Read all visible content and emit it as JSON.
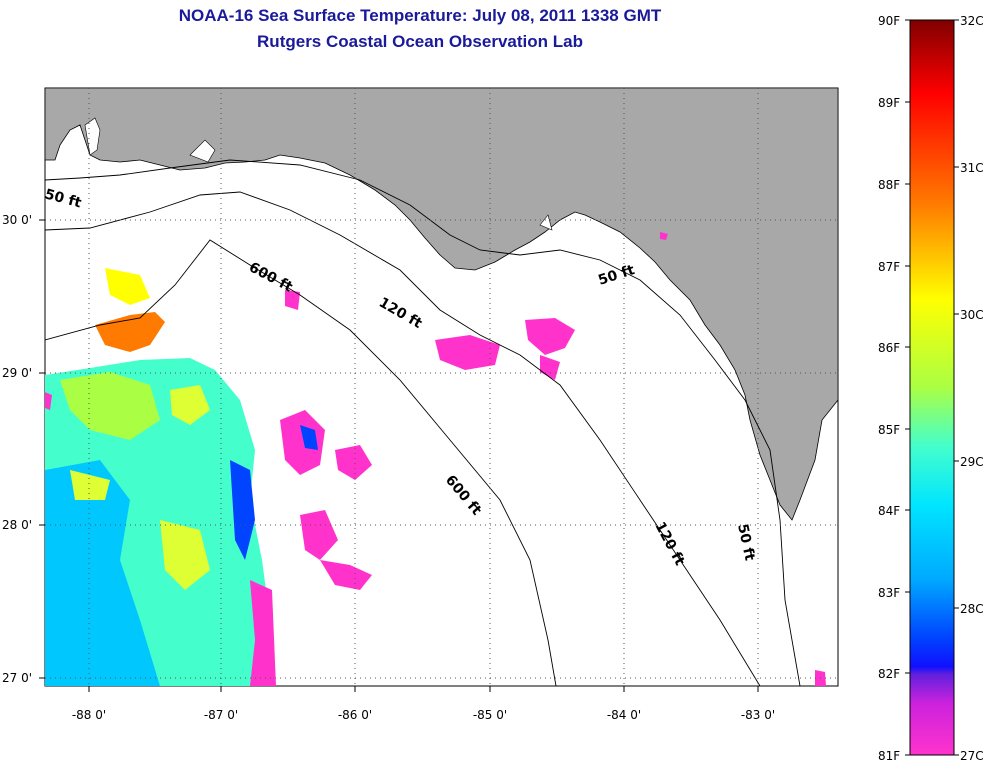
{
  "title": {
    "line1": "NOAA-16 Sea Surface Temperature:  July 08, 2011 1338 GMT",
    "line2": "Rutgers Coastal Ocean Observation Lab"
  },
  "map": {
    "lon_ticks": [
      "-88 0'",
      "-87 0'",
      "-86 0'",
      "-85 0'",
      "-84 0'",
      "-83 0'"
    ],
    "lat_ticks": [
      "30 0'",
      "29 0'",
      "28 0'",
      "27 0'"
    ],
    "contour_labels": [
      "50 ft",
      "600 ft",
      "120 ft",
      "50 ft",
      "600 ft",
      "120 ft",
      "50 ft"
    ],
    "colors": {
      "land": "#a8a8a8",
      "ocean": "#ffffff",
      "grid": "#555555"
    }
  },
  "colorbar": {
    "fahrenheit_ticks": [
      "90F",
      "89F",
      "88F",
      "87F",
      "86F",
      "85F",
      "84F",
      "83F",
      "82F",
      "81F"
    ],
    "celsius_ticks": [
      "32C",
      "31C",
      "30C",
      "29C",
      "28C",
      "27C"
    ],
    "colors_top_to_bottom": [
      "#800000",
      "#ff0000",
      "#ff7a00",
      "#ffff00",
      "#aaff44",
      "#44ffcc",
      "#00e5ff",
      "#00aaff",
      "#0044ff",
      "#1010ff",
      "#8822cc",
      "#ff22dd",
      "#ff33cc"
    ]
  }
}
